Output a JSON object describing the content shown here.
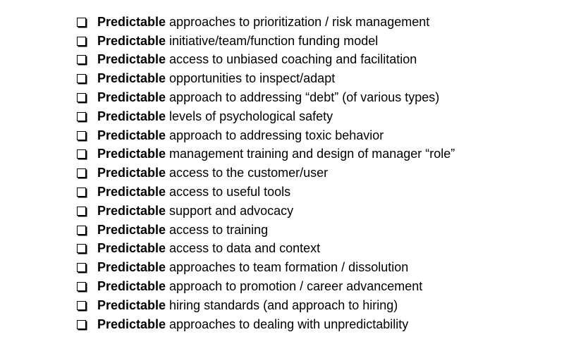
{
  "checklist": {
    "items": [
      {
        "bold": "Predictable",
        "text": "approaches to prioritization / risk management"
      },
      {
        "bold": "Predictable",
        "text": "initiative/team/function funding model"
      },
      {
        "bold": "Predictable",
        "text": "access to unbiased coaching and facilitation"
      },
      {
        "bold": "Predictable",
        "text": "opportunities to inspect/adapt"
      },
      {
        "bold": "Predictable",
        "text": "approach to addressing “debt” (of various types)"
      },
      {
        "bold": "Predictable",
        "text": "levels of psychological safety"
      },
      {
        "bold": "Predictable",
        "text": "approach to addressing toxic behavior"
      },
      {
        "bold": "Predictable",
        "text": "management training and design of manager “role”"
      },
      {
        "bold": "Predictable",
        "text": "access to the customer/user"
      },
      {
        "bold": "Predictable",
        "text": "access to useful tools"
      },
      {
        "bold": "Predictable",
        "text": "support and advocacy"
      },
      {
        "bold": "Predictable",
        "text": "access to training"
      },
      {
        "bold": "Predictable",
        "text": "access to data and context"
      },
      {
        "bold": "Predictable",
        "text": "approaches to team formation / dissolution"
      },
      {
        "bold": "Predictable",
        "text": "approach to promotion / career advancement"
      },
      {
        "bold": "Predictable",
        "text": "hiring standards (and approach to hiring)"
      },
      {
        "bold": "Predictable",
        "text": "approaches to dealing with unpredictability"
      }
    ]
  }
}
